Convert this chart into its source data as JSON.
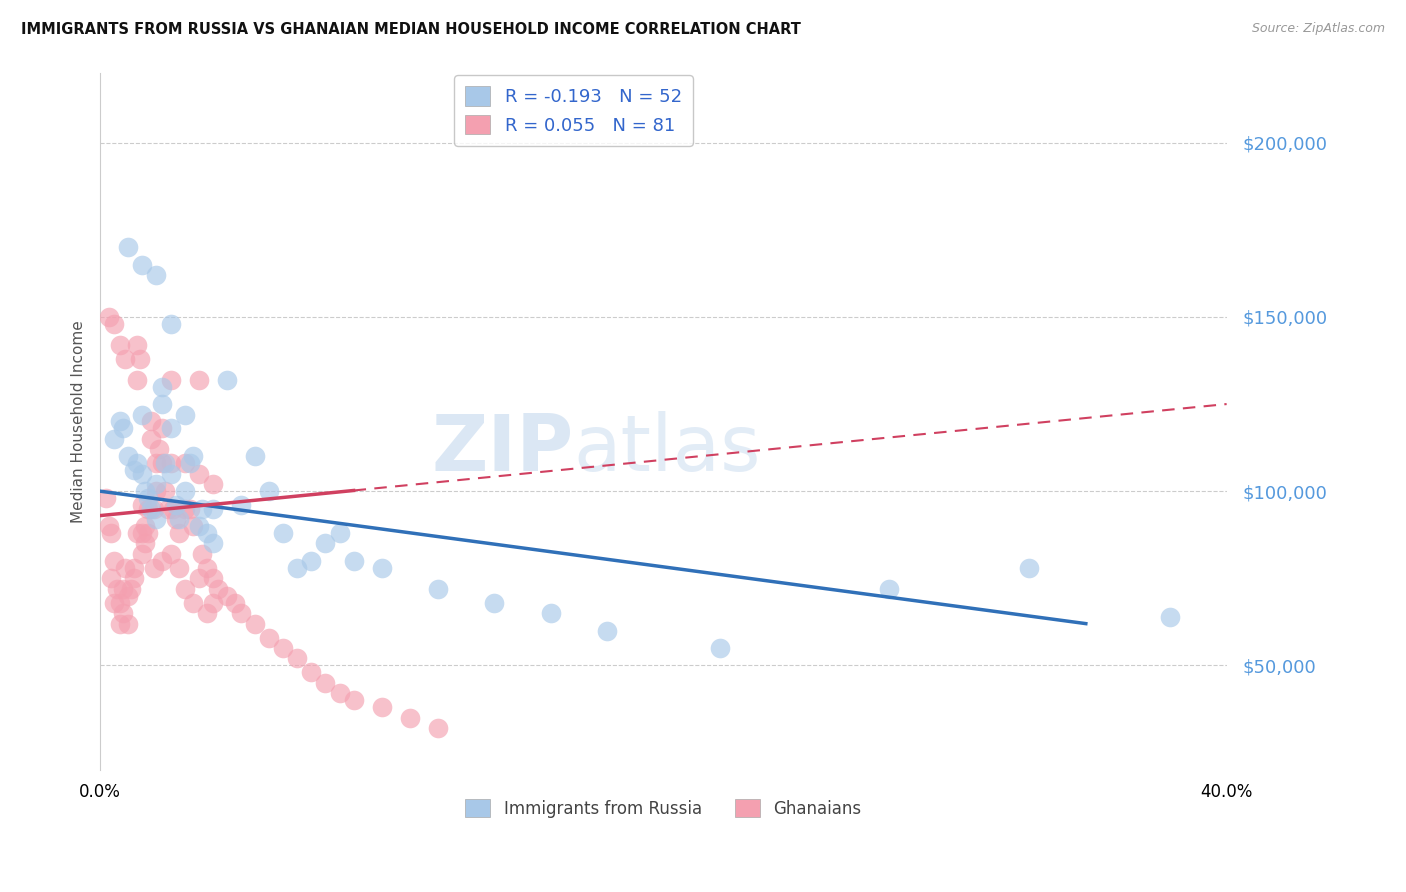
{
  "title": "IMMIGRANTS FROM RUSSIA VS GHANAIAN MEDIAN HOUSEHOLD INCOME CORRELATION CHART",
  "source": "Source: ZipAtlas.com",
  "ylabel": "Median Household Income",
  "legend_blue": "R = -0.193   N = 52",
  "legend_pink": "R = 0.055   N = 81",
  "legend_label_blue": "Immigrants from Russia",
  "legend_label_pink": "Ghanaians",
  "xlim": [
    0.0,
    0.4
  ],
  "ylim": [
    20000,
    220000
  ],
  "blue_color": "#a8c8e8",
  "pink_color": "#f4a0b0",
  "trendline_blue_color": "#3070b8",
  "trendline_pink_solid_color": "#d04060",
  "trendline_pink_dash_color": "#d04060",
  "ytick_color": "#5599dd",
  "russia_x": [
    0.005,
    0.007,
    0.008,
    0.01,
    0.012,
    0.013,
    0.015,
    0.015,
    0.016,
    0.017,
    0.018,
    0.02,
    0.02,
    0.022,
    0.022,
    0.023,
    0.025,
    0.025,
    0.027,
    0.028,
    0.03,
    0.032,
    0.033,
    0.035,
    0.036,
    0.038,
    0.04,
    0.04,
    0.045,
    0.05,
    0.055,
    0.06,
    0.065,
    0.07,
    0.075,
    0.08,
    0.085,
    0.09,
    0.1,
    0.12,
    0.14,
    0.16,
    0.18,
    0.22,
    0.28,
    0.33,
    0.38,
    0.01,
    0.015,
    0.02,
    0.025,
    0.03
  ],
  "russia_y": [
    115000,
    120000,
    118000,
    110000,
    106000,
    108000,
    122000,
    105000,
    100000,
    98000,
    95000,
    92000,
    102000,
    130000,
    125000,
    108000,
    118000,
    105000,
    96000,
    92000,
    100000,
    108000,
    110000,
    90000,
    95000,
    88000,
    85000,
    95000,
    132000,
    96000,
    110000,
    100000,
    88000,
    78000,
    80000,
    85000,
    88000,
    80000,
    78000,
    72000,
    68000,
    65000,
    60000,
    55000,
    72000,
    78000,
    64000,
    170000,
    165000,
    162000,
    148000,
    122000
  ],
  "ghana_x": [
    0.002,
    0.003,
    0.004,
    0.004,
    0.005,
    0.005,
    0.006,
    0.007,
    0.007,
    0.008,
    0.008,
    0.009,
    0.01,
    0.01,
    0.011,
    0.012,
    0.012,
    0.013,
    0.013,
    0.014,
    0.015,
    0.015,
    0.016,
    0.016,
    0.017,
    0.018,
    0.018,
    0.019,
    0.02,
    0.02,
    0.021,
    0.022,
    0.022,
    0.023,
    0.024,
    0.025,
    0.025,
    0.026,
    0.027,
    0.028,
    0.03,
    0.03,
    0.032,
    0.033,
    0.035,
    0.035,
    0.036,
    0.038,
    0.04,
    0.042,
    0.045,
    0.048,
    0.05,
    0.055,
    0.06,
    0.065,
    0.07,
    0.075,
    0.08,
    0.085,
    0.09,
    0.1,
    0.11,
    0.12,
    0.013,
    0.015,
    0.017,
    0.019,
    0.022,
    0.025,
    0.028,
    0.03,
    0.033,
    0.035,
    0.038,
    0.04,
    0.003,
    0.005,
    0.007,
    0.009,
    0.04
  ],
  "ghana_y": [
    98000,
    90000,
    88000,
    75000,
    80000,
    68000,
    72000,
    68000,
    62000,
    72000,
    65000,
    78000,
    70000,
    62000,
    72000,
    78000,
    75000,
    132000,
    142000,
    138000,
    96000,
    88000,
    90000,
    85000,
    88000,
    120000,
    115000,
    95000,
    108000,
    100000,
    112000,
    118000,
    108000,
    100000,
    95000,
    108000,
    132000,
    95000,
    92000,
    88000,
    108000,
    95000,
    95000,
    90000,
    105000,
    132000,
    82000,
    78000,
    75000,
    72000,
    70000,
    68000,
    65000,
    62000,
    58000,
    55000,
    52000,
    48000,
    45000,
    42000,
    40000,
    38000,
    35000,
    32000,
    88000,
    82000,
    95000,
    78000,
    80000,
    82000,
    78000,
    72000,
    68000,
    75000,
    65000,
    68000,
    150000,
    148000,
    142000,
    138000,
    102000
  ]
}
